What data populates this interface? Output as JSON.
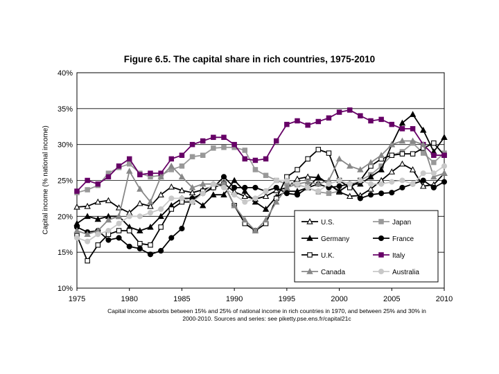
{
  "chart_data": {
    "type": "line",
    "title": "Figure 6.5. The capital share in rich countries, 1975-2010",
    "ylabel": "Capital income (% national income)",
    "xlabel": "",
    "caption": "Capital income absorbs between 15% and 25% of national income in rich countries in 1970, and between 25% and 30% in 2000-2010. Sources and series: see piketty.pse.ens.fr/capital21c",
    "xlim": [
      1975,
      2010
    ],
    "ylim": [
      0.1,
      0.4
    ],
    "x_ticks": [
      1975,
      1980,
      1985,
      1990,
      1995,
      2000,
      2005,
      2010
    ],
    "y_ticks": [
      0.1,
      0.15,
      0.2,
      0.25,
      0.3,
      0.35,
      0.4
    ],
    "x_tick_labels": [
      "1975",
      "1980",
      "1985",
      "1990",
      "1995",
      "2000",
      "2005",
      "2010"
    ],
    "y_tick_labels": [
      "10%",
      "15%",
      "20%",
      "25%",
      "30%",
      "35%",
      "40%"
    ],
    "grid": "horizontal",
    "legend_position": "lower-right",
    "x": [
      1975,
      1976,
      1977,
      1978,
      1979,
      1980,
      1981,
      1982,
      1983,
      1984,
      1985,
      1986,
      1987,
      1988,
      1989,
      1990,
      1991,
      1992,
      1993,
      1994,
      1995,
      1996,
      1997,
      1998,
      1999,
      2000,
      2001,
      2002,
      2003,
      2004,
      2005,
      2006,
      2007,
      2008,
      2009,
      2010
    ],
    "series": [
      {
        "name": "U.S.",
        "color": "#000000",
        "marker": "triangle-open",
        "values": [
          0.213,
          0.214,
          0.22,
          0.222,
          0.212,
          0.205,
          0.218,
          0.214,
          0.23,
          0.241,
          0.236,
          0.233,
          0.237,
          0.242,
          0.246,
          0.234,
          0.228,
          0.224,
          0.228,
          0.236,
          0.24,
          0.252,
          0.255,
          0.254,
          0.245,
          0.234,
          0.228,
          0.229,
          0.238,
          0.25,
          0.262,
          0.273,
          0.265,
          0.242,
          0.244,
          0.26
        ]
      },
      {
        "name": "Japan",
        "color": "#999999",
        "marker": "square",
        "values": [
          0.233,
          0.237,
          0.243,
          0.26,
          0.268,
          0.273,
          0.26,
          0.255,
          0.257,
          0.265,
          0.27,
          0.283,
          0.285,
          0.295,
          0.296,
          0.296,
          0.292,
          0.265,
          0.257,
          0.25,
          0.245,
          0.244,
          0.24,
          0.234,
          0.232,
          0.235,
          0.244,
          0.25,
          0.258,
          0.27,
          0.285,
          0.29,
          0.302,
          0.288,
          0.275,
          0.288
        ]
      },
      {
        "name": "Germany",
        "color": "#000000",
        "marker": "triangle",
        "values": [
          0.19,
          0.2,
          0.196,
          0.2,
          0.2,
          0.185,
          0.18,
          0.185,
          0.2,
          0.215,
          0.225,
          0.225,
          0.215,
          0.23,
          0.23,
          0.25,
          0.235,
          0.22,
          0.21,
          0.227,
          0.235,
          0.235,
          0.24,
          0.255,
          0.245,
          0.235,
          0.245,
          0.245,
          0.255,
          0.265,
          0.3,
          0.33,
          0.342,
          0.32,
          0.29,
          0.31
        ]
      },
      {
        "name": "France",
        "color": "#000000",
        "marker": "circle",
        "values": [
          0.185,
          0.178,
          0.18,
          0.167,
          0.17,
          0.158,
          0.155,
          0.147,
          0.152,
          0.17,
          0.183,
          0.225,
          0.232,
          0.24,
          0.255,
          0.24,
          0.24,
          0.24,
          0.235,
          0.24,
          0.232,
          0.23,
          0.24,
          0.245,
          0.24,
          0.242,
          0.245,
          0.225,
          0.23,
          0.232,
          0.233,
          0.24,
          0.245,
          0.25,
          0.24,
          0.248
        ]
      },
      {
        "name": "U.K.",
        "color": "#000000",
        "marker": "square-open",
        "values": [
          0.173,
          0.138,
          0.16,
          0.175,
          0.18,
          0.18,
          0.162,
          0.16,
          0.185,
          0.21,
          0.22,
          0.22,
          0.235,
          0.24,
          0.245,
          0.215,
          0.19,
          0.18,
          0.19,
          0.225,
          0.255,
          0.265,
          0.28,
          0.293,
          0.288,
          0.25,
          0.24,
          0.25,
          0.27,
          0.28,
          0.285,
          0.287,
          0.287,
          0.295,
          0.302,
          0.285
        ]
      },
      {
        "name": "Italy",
        "color": "#660066",
        "marker": "square",
        "values": [
          0.235,
          0.25,
          0.245,
          0.255,
          0.27,
          0.28,
          0.258,
          0.26,
          0.26,
          0.28,
          0.285,
          0.3,
          0.305,
          0.31,
          0.31,
          0.3,
          0.28,
          0.278,
          0.28,
          0.305,
          0.328,
          0.333,
          0.327,
          0.332,
          0.337,
          0.345,
          0.348,
          0.34,
          0.333,
          0.335,
          0.328,
          0.322,
          0.322,
          0.3,
          0.285,
          0.285
        ]
      },
      {
        "name": "Canada",
        "color": "#888888",
        "marker": "triangle",
        "values": [
          0.18,
          0.175,
          0.18,
          0.195,
          0.2,
          0.263,
          0.238,
          0.22,
          0.255,
          0.27,
          0.255,
          0.24,
          0.245,
          0.245,
          0.245,
          0.215,
          0.195,
          0.18,
          0.195,
          0.22,
          0.24,
          0.245,
          0.248,
          0.245,
          0.25,
          0.28,
          0.27,
          0.265,
          0.275,
          0.285,
          0.3,
          0.305,
          0.305,
          0.3,
          0.255,
          0.26
        ]
      },
      {
        "name": "Australia",
        "color": "#c8c8c8",
        "marker": "circle",
        "values": [
          0.17,
          0.165,
          0.175,
          0.18,
          0.19,
          0.2,
          0.2,
          0.205,
          0.21,
          0.225,
          0.225,
          0.22,
          0.232,
          0.245,
          0.24,
          0.23,
          0.22,
          0.225,
          0.235,
          0.25,
          0.25,
          0.245,
          0.24,
          0.235,
          0.245,
          0.25,
          0.245,
          0.25,
          0.245,
          0.245,
          0.248,
          0.25,
          0.245,
          0.26,
          0.26,
          0.27
        ]
      }
    ]
  }
}
